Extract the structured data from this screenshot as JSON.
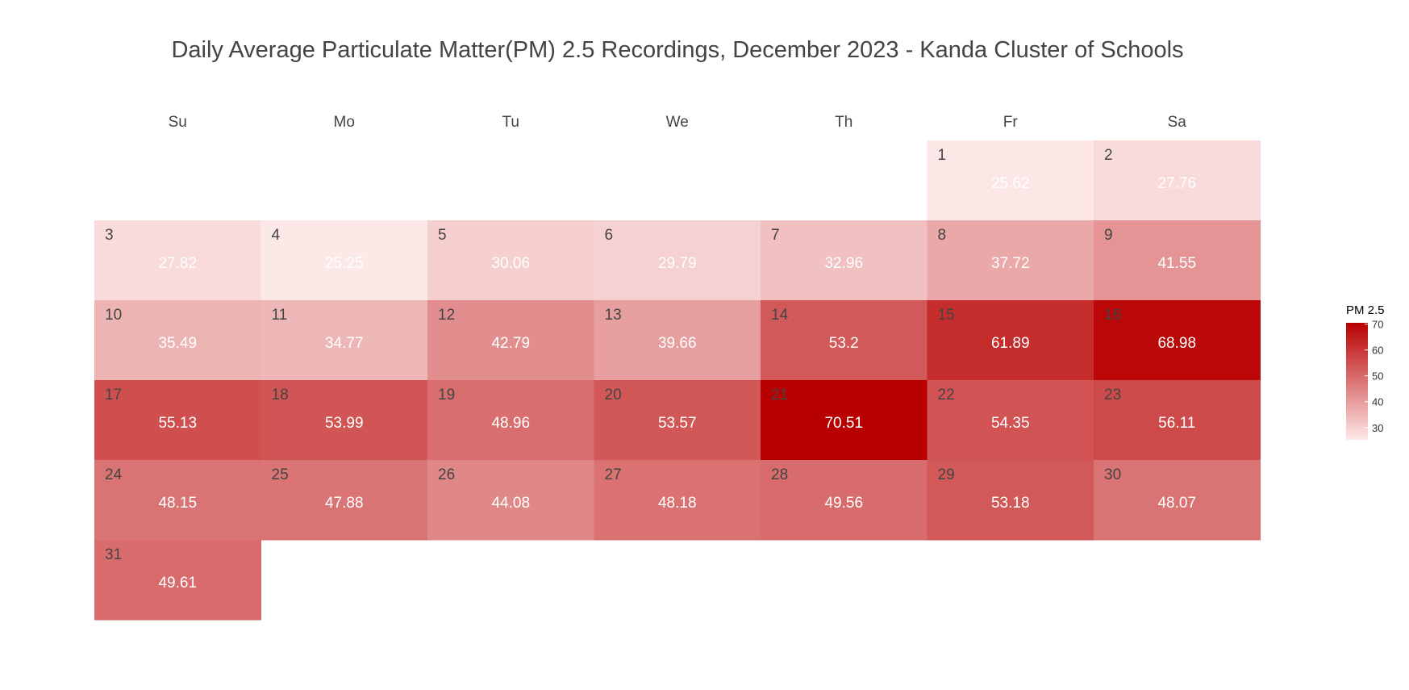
{
  "chart_data": {
    "type": "heatmap",
    "title": "Daily Average Particulate Matter(PM) 2.5 Recordings, December 2023 - Kanda Cluster of Schools",
    "weekdays": [
      "Su",
      "Mo",
      "Tu",
      "We",
      "Th",
      "Fr",
      "Sa"
    ],
    "month": "December 2023",
    "first_weekday_index": 5,
    "days": [
      {
        "day": 1,
        "value": 25.62
      },
      {
        "day": 2,
        "value": 27.76
      },
      {
        "day": 3,
        "value": 27.82
      },
      {
        "day": 4,
        "value": 25.25
      },
      {
        "day": 5,
        "value": 30.06
      },
      {
        "day": 6,
        "value": 29.79
      },
      {
        "day": 7,
        "value": 32.96
      },
      {
        "day": 8,
        "value": 37.72
      },
      {
        "day": 9,
        "value": 41.55
      },
      {
        "day": 10,
        "value": 35.49
      },
      {
        "day": 11,
        "value": 34.77
      },
      {
        "day": 12,
        "value": 42.79
      },
      {
        "day": 13,
        "value": 39.66
      },
      {
        "day": 14,
        "value": 53.2
      },
      {
        "day": 15,
        "value": 61.89
      },
      {
        "day": 16,
        "value": 68.98
      },
      {
        "day": 17,
        "value": 55.13
      },
      {
        "day": 18,
        "value": 53.99
      },
      {
        "day": 19,
        "value": 48.96
      },
      {
        "day": 20,
        "value": 53.57
      },
      {
        "day": 21,
        "value": 70.51
      },
      {
        "day": 22,
        "value": 54.35
      },
      {
        "day": 23,
        "value": 56.11
      },
      {
        "day": 24,
        "value": 48.15
      },
      {
        "day": 25,
        "value": 47.88
      },
      {
        "day": 26,
        "value": 44.08
      },
      {
        "day": 27,
        "value": 48.18
      },
      {
        "day": 28,
        "value": 49.56
      },
      {
        "day": 29,
        "value": 53.18
      },
      {
        "day": 30,
        "value": 48.07
      },
      {
        "day": 31,
        "value": 49.61
      }
    ],
    "legend": {
      "title": "PM 2.5",
      "ticks": [
        30,
        40,
        50,
        60,
        70
      ],
      "range": [
        25.25,
        70.51
      ],
      "placement": "right"
    },
    "colors": {
      "low": "#fde8e8",
      "high": "#b80000",
      "title_text": "#444444",
      "day_label_text": "#444444",
      "value_text": "#ffffff"
    }
  }
}
